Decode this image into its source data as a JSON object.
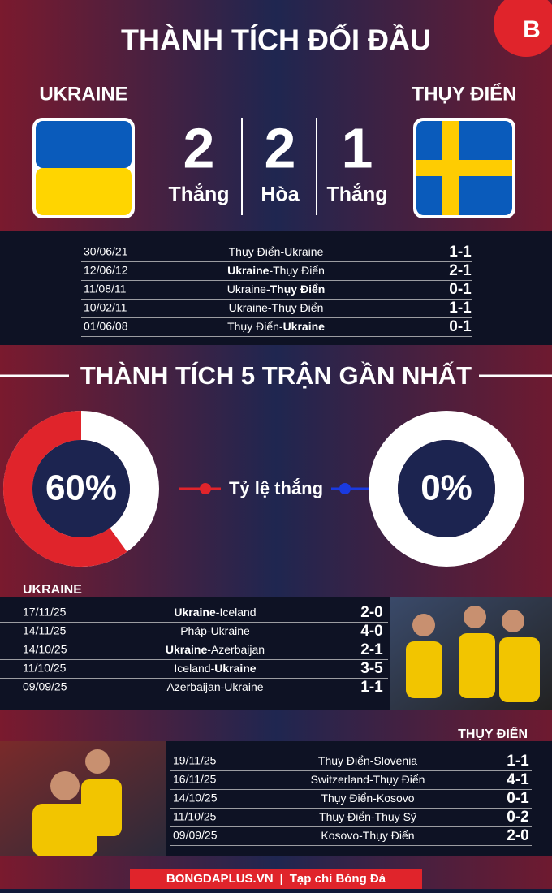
{
  "header": {
    "title": "THÀNH TÍCH ĐỐI ĐẦU",
    "logo": "B"
  },
  "head_to_head": {
    "teams": [
      "UKRAINE",
      "THỤY ĐIỂN"
    ],
    "summary": [
      {
        "value": 2,
        "label": "Thắng"
      },
      {
        "value": 2,
        "label": "Hòa"
      },
      {
        "value": 1,
        "label": "Thắng"
      }
    ],
    "matches": [
      {
        "date": "30/06/21",
        "teams": [
          "Thụy Điển",
          "Ukraine"
        ],
        "score": "1-1"
      },
      {
        "date": "12/06/12",
        "teams": [
          "Ukraine",
          "Thụy Điển"
        ],
        "bold": 0,
        "score": "2-1"
      },
      {
        "date": "11/08/11",
        "teams": [
          "Ukraine",
          "Thụy Điển"
        ],
        "bold": 1,
        "score": "0-1"
      },
      {
        "date": "10/02/11",
        "teams": [
          "Ukraine",
          "Thụy Điển"
        ],
        "score": "1-1"
      },
      {
        "date": "01/06/08",
        "teams": [
          "Thụy Điển",
          "Ukraine"
        ],
        "bold": 1,
        "score": "0-1"
      }
    ]
  },
  "separator": "-",
  "recent": {
    "title": "THÀNH TÍCH 5 TRẬN GẦN NHẤT",
    "win_rate_label": "Tỷ lệ thắng",
    "win_rates": [
      {
        "value": 60,
        "label": "60%"
      },
      {
        "value": 0,
        "label": "0%"
      }
    ],
    "ukraine": {
      "name": "UKRAINE",
      "matches": [
        {
          "date": "17/11/25",
          "teams": [
            "Ukraine",
            "Iceland"
          ],
          "bold": 0,
          "score": "2-0"
        },
        {
          "date": "14/11/25",
          "teams": [
            "Pháp",
            "Ukraine"
          ],
          "score": "4-0"
        },
        {
          "date": "14/10/25",
          "teams": [
            "Ukraine",
            "Azerbaijan"
          ],
          "bold": 0,
          "score": "2-1"
        },
        {
          "date": "11/10/25",
          "teams": [
            "Iceland",
            "Ukraine"
          ],
          "bold": 1,
          "score": "3-5"
        },
        {
          "date": "09/09/25",
          "teams": [
            "Azerbaijan",
            "Ukraine"
          ],
          "score": "1-1"
        }
      ]
    },
    "sweden": {
      "name": "THỤY ĐIỂN",
      "matches": [
        {
          "date": "19/11/25",
          "teams": [
            "Thụy Điển",
            "Slovenia"
          ],
          "score": "1-1"
        },
        {
          "date": "16/11/25",
          "teams": [
            "Switzerland",
            "Thụy Điển"
          ],
          "score": "4-1"
        },
        {
          "date": "14/10/25",
          "teams": [
            "Thụy Điển",
            "Kosovo"
          ],
          "score": "0-1"
        },
        {
          "date": "11/10/25",
          "teams": [
            "Thụy Điển",
            "Thụy Sỹ"
          ],
          "score": "0-2"
        },
        {
          "date": "09/09/25",
          "teams": [
            "Kosovo",
            "Thụy Điển"
          ],
          "score": "2-0"
        }
      ]
    }
  },
  "footer": {
    "site": "BONGDAPLUS.VN",
    "divider": "|",
    "magazine": "Tạp chí Bóng Đá"
  }
}
